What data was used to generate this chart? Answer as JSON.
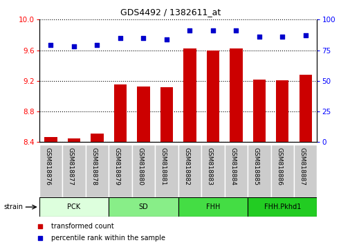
{
  "title": "GDS4492 / 1382611_at",
  "samples": [
    "GSM818876",
    "GSM818877",
    "GSM818878",
    "GSM818879",
    "GSM818880",
    "GSM818881",
    "GSM818882",
    "GSM818883",
    "GSM818884",
    "GSM818885",
    "GSM818886",
    "GSM818887"
  ],
  "transformed_count": [
    8.47,
    8.45,
    8.51,
    9.15,
    9.13,
    9.12,
    9.62,
    9.6,
    9.62,
    9.22,
    9.21,
    9.28
  ],
  "percentile_rank": [
    79,
    78,
    79,
    85,
    85,
    84,
    91,
    91,
    91,
    86,
    86,
    87
  ],
  "bar_color": "#cc0000",
  "dot_color": "#0000cc",
  "ylim_left": [
    8.4,
    10.0
  ],
  "ylim_right": [
    0,
    100
  ],
  "yticks_left": [
    8.4,
    8.8,
    9.2,
    9.6,
    10.0
  ],
  "yticks_right": [
    0,
    25,
    50,
    75,
    100
  ],
  "groups": [
    {
      "label": "PCK",
      "start": 0,
      "end": 3,
      "color": "#ddffdd"
    },
    {
      "label": "SD",
      "start": 3,
      "end": 6,
      "color": "#88ee88"
    },
    {
      "label": "FHH",
      "start": 6,
      "end": 9,
      "color": "#44dd44"
    },
    {
      "label": "FHH.Pkhd1",
      "start": 9,
      "end": 12,
      "color": "#22cc22"
    }
  ],
  "strain_label": "strain",
  "tick_bg_color": "#cccccc",
  "fig_bg": "#ffffff"
}
